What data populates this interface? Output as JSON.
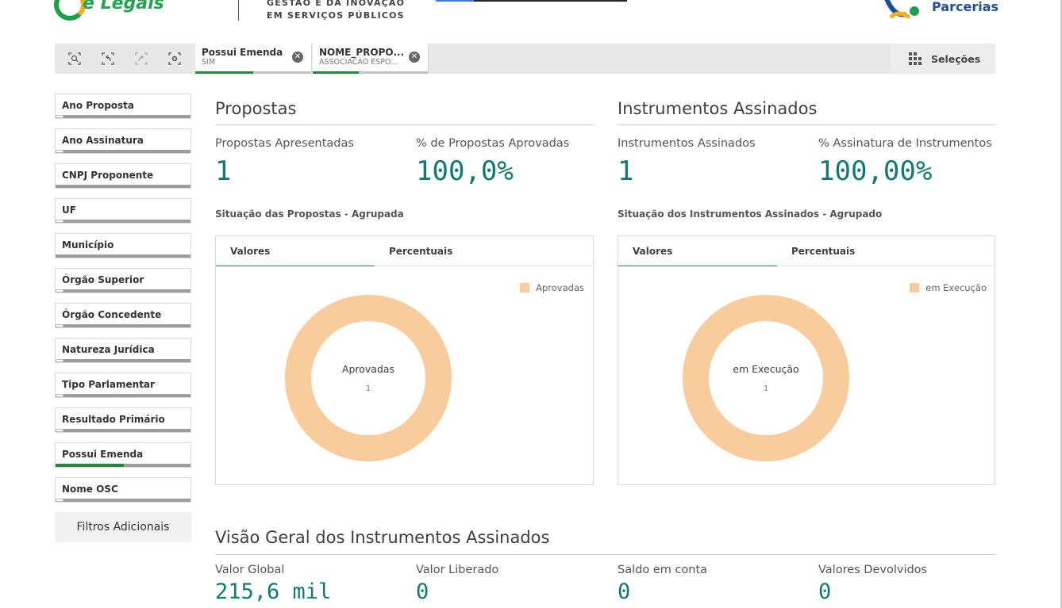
{
  "header": {
    "logo_text": "e Legais",
    "subtitle_line1": "GESTÃO E DA INOVAÇÃO",
    "subtitle_line2": "EM SERVIÇOS PÚBLICOS",
    "right_logo_text": "Parcerias"
  },
  "selection_bar": {
    "tools": [
      {
        "icon": "smart-search-icon"
      },
      {
        "icon": "step-back-icon"
      },
      {
        "icon": "step-forward-icon"
      },
      {
        "icon": "clear-selections-icon"
      }
    ],
    "chips": [
      {
        "title": "Possui Emenda",
        "value": "SIM",
        "fill": 0.5
      },
      {
        "title": "NOME_PROPO...",
        "value": "ASSOCIACAO ESPO...",
        "fill": 0.4
      }
    ],
    "selections_label": "Seleções",
    "selections_icon": "grid-icon"
  },
  "sidebar": {
    "filters": [
      {
        "label": "Ano Proposta",
        "state": "white"
      },
      {
        "label": "Ano Assinatura",
        "state": "white"
      },
      {
        "label": "CNPJ Proponente",
        "state": "none"
      },
      {
        "label": "UF",
        "state": "white"
      },
      {
        "label": "Município",
        "state": "none"
      },
      {
        "label": "Órgão Superior",
        "state": "white"
      },
      {
        "label": "Órgão Concedente",
        "state": "white"
      },
      {
        "label": "Natureza Jurídica",
        "state": "white"
      },
      {
        "label": "Tipo Parlamentar",
        "state": "white"
      },
      {
        "label": "Resultado Primário",
        "state": "white"
      },
      {
        "label": "Possui Emenda",
        "state": "green"
      },
      {
        "label": "Nome OSC",
        "state": "white"
      }
    ],
    "more_filters": "Filtros Adicionais"
  },
  "propostas": {
    "title": "Propostas",
    "kpi1_label": "Propostas Apresentadas",
    "kpi1_value": "1",
    "kpi2_label": "% de Propostas Aprovadas",
    "kpi2_value": "100,0%",
    "chart_heading": "Situação das Propostas - Agrupada",
    "tab1": "Valores",
    "tab2": "Percentuais",
    "legend": "Aprovadas",
    "donut_label": "Aprovadas",
    "donut_value": "1"
  },
  "instrumentos": {
    "title": "Instrumentos Assinados",
    "kpi1_label": "Instrumentos Assinados",
    "kpi1_value": "1",
    "kpi2_label": "% Assinatura de Instrumentos",
    "kpi2_value": "100,00%",
    "chart_heading": "Situação dos Instrumentos Assinados - Agrupado",
    "tab1": "Valores",
    "tab2": "Percentuais",
    "legend": "em Execução",
    "donut_label": "em Execução",
    "donut_value": "1"
  },
  "visao_geral": {
    "title": "Visão Geral dos Instrumentos Assinados",
    "kpis": [
      {
        "label": "Valor Global",
        "value": "215,6 mil"
      },
      {
        "label": "Valor Liberado",
        "value": "0"
      },
      {
        "label": "Saldo em conta",
        "value": "0"
      },
      {
        "label": "Valores Devolvidos",
        "value": "0"
      }
    ]
  },
  "colors": {
    "accent_green": "#1e8a3a",
    "kpi_teal": "#0f7a74",
    "donut_fill": "#f8cc9b"
  }
}
